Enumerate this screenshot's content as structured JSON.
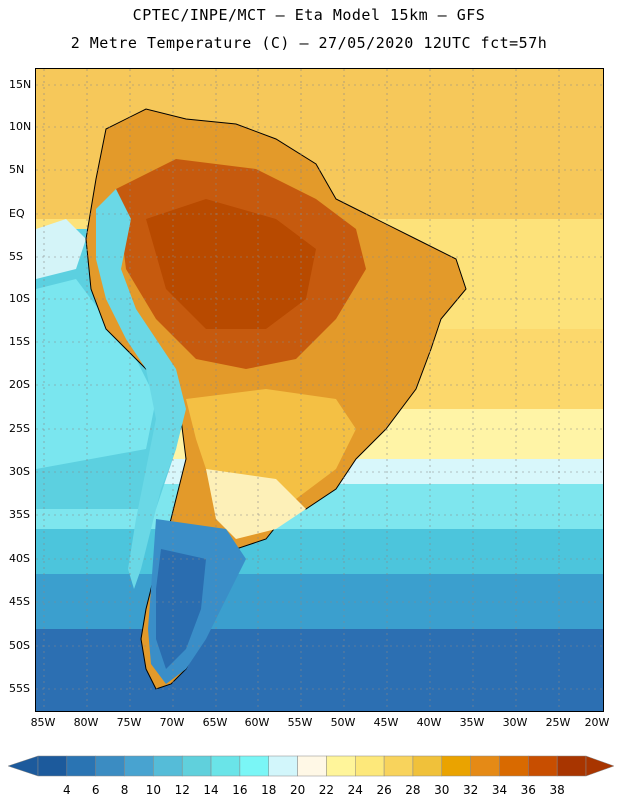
{
  "header": {
    "line1": "CPTEC/INPE/MCT –  Eta Model 15km – GFS",
    "line2": "2 Metre Temperature (C) – 27/05/2020 12UTC fct=57h"
  },
  "map": {
    "region": "South America",
    "lat_labels": [
      "15N",
      "10N",
      "5N",
      "EQ",
      "5S",
      "10S",
      "15S",
      "20S",
      "25S",
      "30S",
      "35S",
      "40S",
      "45S",
      "50S",
      "55S"
    ],
    "lon_labels": [
      "85W",
      "80W",
      "75W",
      "70W",
      "65W",
      "60W",
      "55W",
      "50W",
      "45W",
      "40W",
      "35W",
      "30W",
      "25W",
      "20W"
    ]
  },
  "colorbar": {
    "labels": [
      "4",
      "6",
      "8",
      "10",
      "12",
      "14",
      "16",
      "18",
      "20",
      "22",
      "24",
      "26",
      "28",
      "30",
      "32",
      "34",
      "36",
      "38"
    ],
    "colors": [
      "#1c5a9c",
      "#2a74b3",
      "#3b8cc2",
      "#48a3d0",
      "#55bcd8",
      "#60d0dc",
      "#6ae4e8",
      "#7af6f6",
      "#d2f6fb",
      "#fff8e6",
      "#fff59a",
      "#fde87a",
      "#f8d35c",
      "#f0c13a",
      "#eaa300",
      "#e58a16",
      "#d96a00",
      "#c84e00",
      "#a83500"
    ]
  }
}
